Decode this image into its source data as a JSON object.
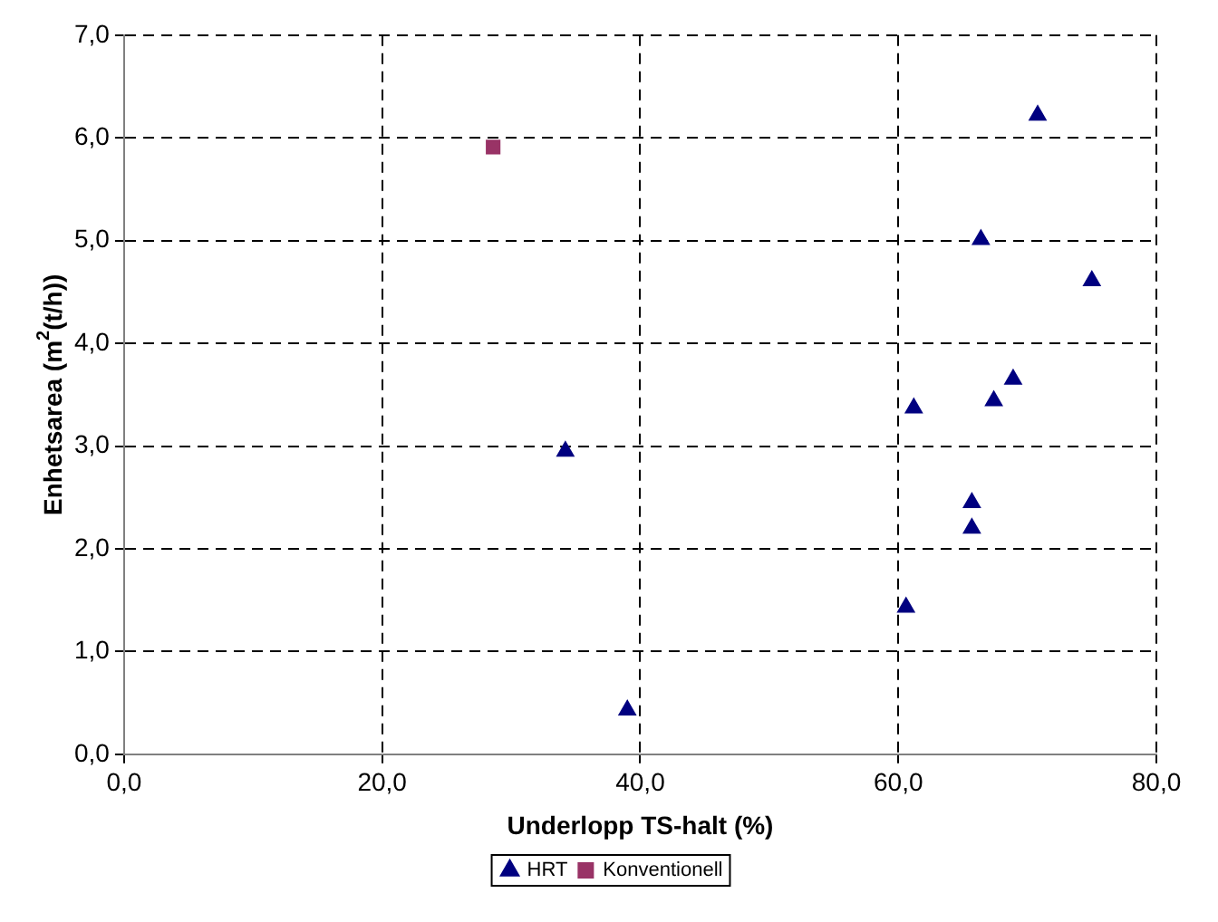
{
  "chart_data": {
    "type": "scatter",
    "xlabel": "Underlopp TS-halt (%)",
    "ylabel": "Enhetsarea (m$^{2}$(t/h))",
    "xlim": [
      0,
      80
    ],
    "xticks": [
      {
        "value": 0,
        "label": "0,0"
      },
      {
        "value": 20,
        "label": "20,0"
      },
      {
        "value": 40,
        "label": "40,0"
      },
      {
        "value": 60,
        "label": "60,0"
      },
      {
        "value": 80,
        "label": "80,0"
      }
    ],
    "ylim": [
      0,
      7
    ],
    "yticks": [
      {
        "value": 0,
        "label": "0,0"
      },
      {
        "value": 1,
        "label": "1,0"
      },
      {
        "value": 2,
        "label": "2,0"
      },
      {
        "value": 3,
        "label": "3,0"
      },
      {
        "value": 4,
        "label": "4,0"
      },
      {
        "value": 5,
        "label": "5,0"
      },
      {
        "value": 6,
        "label": "6,0"
      },
      {
        "value": 7,
        "label": "7,0"
      }
    ],
    "grid": true,
    "legend": "bottom",
    "series": [
      {
        "name": "HRT",
        "color": "#000080",
        "marker": "triangle",
        "x": [
          34.2,
          39.0,
          60.6,
          61.2,
          65.7,
          65.7,
          66.4,
          67.4,
          68.9,
          70.8,
          75.0
        ],
        "values": [
          2.95,
          0.43,
          1.43,
          3.37,
          2.45,
          2.2,
          5.01,
          3.44,
          3.65,
          6.22,
          4.61
        ]
      },
      {
        "name": "Konventionell",
        "color": "#993366",
        "marker": "square",
        "x": [
          28.6
        ],
        "values": [
          5.91
        ]
      }
    ]
  }
}
